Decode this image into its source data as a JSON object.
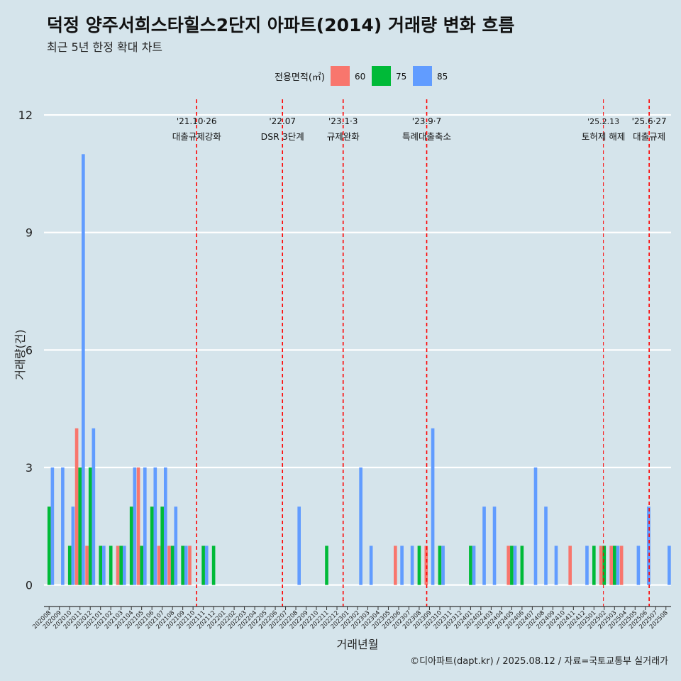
{
  "page": {
    "title": "덕정 양주서희스타힐스2단지 아파트(2014) 거래량 변화 흐름",
    "subtitle": "최근 5년 한정 확대 차트",
    "caption": "©디아파트(dapt.kr) / 2025.08.12 / 자료=국토교통부 실거래가"
  },
  "chart_data": {
    "type": "bar",
    "xlabel": "거래년월",
    "ylabel": "거래량(건)",
    "ylim": [
      -0.55,
      12.4
    ],
    "yticks": [
      0,
      3,
      6,
      9,
      12
    ],
    "grid": true,
    "legend": {
      "title": "전용면적(㎡)",
      "position": "top",
      "entries": [
        {
          "label": "60",
          "color": "#f8766d"
        },
        {
          "label": "75",
          "color": "#00ba38"
        },
        {
          "label": "85",
          "color": "#619cff"
        }
      ]
    },
    "categories": [
      "202008",
      "202009",
      "202010",
      "202011",
      "202012",
      "202101",
      "202102",
      "202103",
      "202104",
      "202105",
      "202106",
      "202107",
      "202108",
      "202109",
      "202110",
      "202111",
      "202112",
      "202201",
      "202202",
      "202203",
      "202204",
      "202205",
      "202206",
      "202207",
      "202208",
      "202209",
      "202210",
      "202211",
      "202212",
      "202301",
      "202302",
      "202303",
      "202304",
      "202305",
      "202306",
      "202307",
      "202308",
      "202309",
      "202310",
      "202311",
      "202312",
      "202401",
      "202402",
      "202403",
      "202404",
      "202405",
      "202406",
      "202407",
      "202408",
      "202409",
      "202410",
      "202411",
      "202412",
      "202501",
      "202502",
      "202503",
      "202504",
      "202505",
      "202506",
      "202507",
      "202508"
    ],
    "series": [
      {
        "name": "60",
        "color": "#f8766d",
        "values": [
          0,
          0,
          0,
          4,
          1,
          0,
          0,
          1,
          0,
          3,
          0,
          1,
          1,
          0,
          1,
          0,
          0,
          0,
          0,
          0,
          0,
          0,
          0,
          0,
          0,
          0,
          0,
          0,
          0,
          0,
          0,
          0,
          0,
          0,
          1,
          0,
          0,
          1,
          0,
          0,
          0,
          0,
          0,
          0,
          0,
          1,
          0,
          0,
          0,
          0,
          0,
          1,
          0,
          0,
          1,
          1,
          1,
          0,
          0,
          0,
          0
        ]
      },
      {
        "name": "75",
        "color": "#00ba38",
        "values": [
          2,
          0,
          1,
          3,
          3,
          1,
          1,
          1,
          2,
          1,
          2,
          2,
          1,
          1,
          0,
          1,
          1,
          0,
          0,
          0,
          0,
          0,
          0,
          0,
          0,
          0,
          0,
          1,
          0,
          0,
          0,
          0,
          0,
          0,
          0,
          0,
          1,
          0,
          1,
          0,
          0,
          1,
          0,
          0,
          0,
          1,
          1,
          0,
          0,
          0,
          0,
          0,
          0,
          1,
          1,
          1,
          0,
          0,
          0,
          0,
          0
        ]
      },
      {
        "name": "85",
        "color": "#619cff",
        "values": [
          3,
          3,
          2,
          11,
          4,
          1,
          0,
          1,
          3,
          3,
          3,
          3,
          2,
          1,
          0,
          1,
          0,
          0,
          0,
          0,
          0,
          0,
          0,
          0,
          2,
          0,
          0,
          0,
          0,
          0,
          3,
          1,
          0,
          0,
          1,
          1,
          0,
          4,
          1,
          0,
          0,
          1,
          2,
          2,
          0,
          1,
          0,
          3,
          2,
          1,
          0,
          0,
          1,
          0,
          0,
          1,
          0,
          1,
          2,
          0,
          1
        ]
      }
    ],
    "annotations": [
      {
        "after": "202110",
        "offset": 0.85,
        "date": "'21.10·26",
        "label": "대출규제강화",
        "style": "bold"
      },
      {
        "after": "202207",
        "offset": 0.2,
        "date": "'22.07",
        "label": "DSR 3단계",
        "style": "bold"
      },
      {
        "after": "202301",
        "offset": 0.1,
        "date": "'23.1·3",
        "label": "규제완화",
        "style": "bold"
      },
      {
        "after": "202309",
        "offset": 0.23,
        "date": "'23.9·7",
        "label": "특례대출축소",
        "style": "bold"
      },
      {
        "after": "202502",
        "offset": 0.42,
        "date": "'25.2.13",
        "label": "토허제 해제",
        "style": "thin"
      },
      {
        "after": "202506",
        "offset": 0.87,
        "date": "'25.6·27",
        "label": "대출규제",
        "style": "bold"
      }
    ]
  }
}
